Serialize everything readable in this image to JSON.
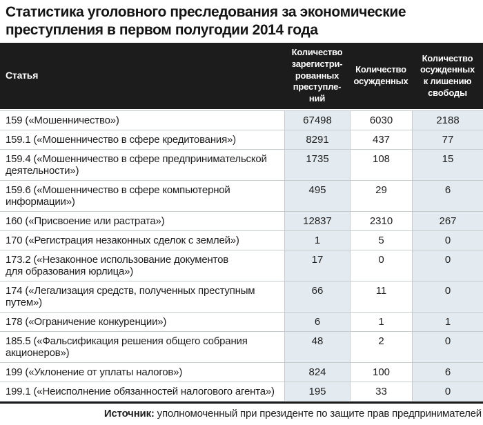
{
  "title": "Статистика уголовного преследования за экономические\nпреступления в первом полугодии 2014 года",
  "source": {
    "label": "Источник:",
    "text": " уполномоченный при президенте по защите прав предпринимателей"
  },
  "colors": {
    "header_bg": "#1c1c1c",
    "header_text": "#ffffff",
    "highlight_column_bg": "#e4ebf0",
    "grid_line": "#c6cbce",
    "body_text": "#1d1d1d"
  },
  "chart_data": {
    "type": "table",
    "title": "Статистика уголовного преследования за экономические преступления в первом полугодии 2014 года",
    "columns": [
      "Статья",
      "Количество зарегистрированных преступлений",
      "Количество осужденных",
      "Количество осужденных к лишению свободы"
    ],
    "header_display": [
      "Статья",
      "Количество\nзарегистри-\nрованных\nпреступле-\nний",
      "Количество\nосужденных",
      "Количество\nосужденных\nк лишению\nсвободы"
    ],
    "rows": [
      {
        "article": "159 («Мошенничество»)",
        "registered": 67498,
        "convicted": 6030,
        "imprisoned": 2188
      },
      {
        "article": "159.1 («Мошенничество в сфере кредитования»)",
        "registered": 8291,
        "convicted": 437,
        "imprisoned": 77
      },
      {
        "article": "159.4 («Мошенничество в сфере предпринимательской\nдеятельности»)",
        "registered": 1735,
        "convicted": 108,
        "imprisoned": 15
      },
      {
        "article": "159.6 («Мошенничество в сфере компьютерной\nинформации»)",
        "registered": 495,
        "convicted": 29,
        "imprisoned": 6
      },
      {
        "article": "160 («Присвоение или растрата»)",
        "registered": 12837,
        "convicted": 2310,
        "imprisoned": 267
      },
      {
        "article": "170 («Регистрация незаконных сделок с землей»)",
        "registered": 1,
        "convicted": 5,
        "imprisoned": 0
      },
      {
        "article": "173.2 («Незаконное использование документов\nдля образования юрлица»)",
        "registered": 17,
        "convicted": 0,
        "imprisoned": 0
      },
      {
        "article": "174 («Легализация средств, полученных преступным\nпутем»)",
        "registered": 66,
        "convicted": 11,
        "imprisoned": 0
      },
      {
        "article": "178 («Ограничение конкуренции»)",
        "registered": 6,
        "convicted": 1,
        "imprisoned": 1
      },
      {
        "article": "185.5 («Фальсификация решения общего собрания\nакционеров»)",
        "registered": 48,
        "convicted": 2,
        "imprisoned": 0
      },
      {
        "article": "199 («Уклонение от уплаты налогов»)",
        "registered": 824,
        "convicted": 100,
        "imprisoned": 6
      },
      {
        "article": "199.1 («Неисполнение обязанностей налогового агента»)",
        "registered": 195,
        "convicted": 33,
        "imprisoned": 0
      }
    ]
  }
}
